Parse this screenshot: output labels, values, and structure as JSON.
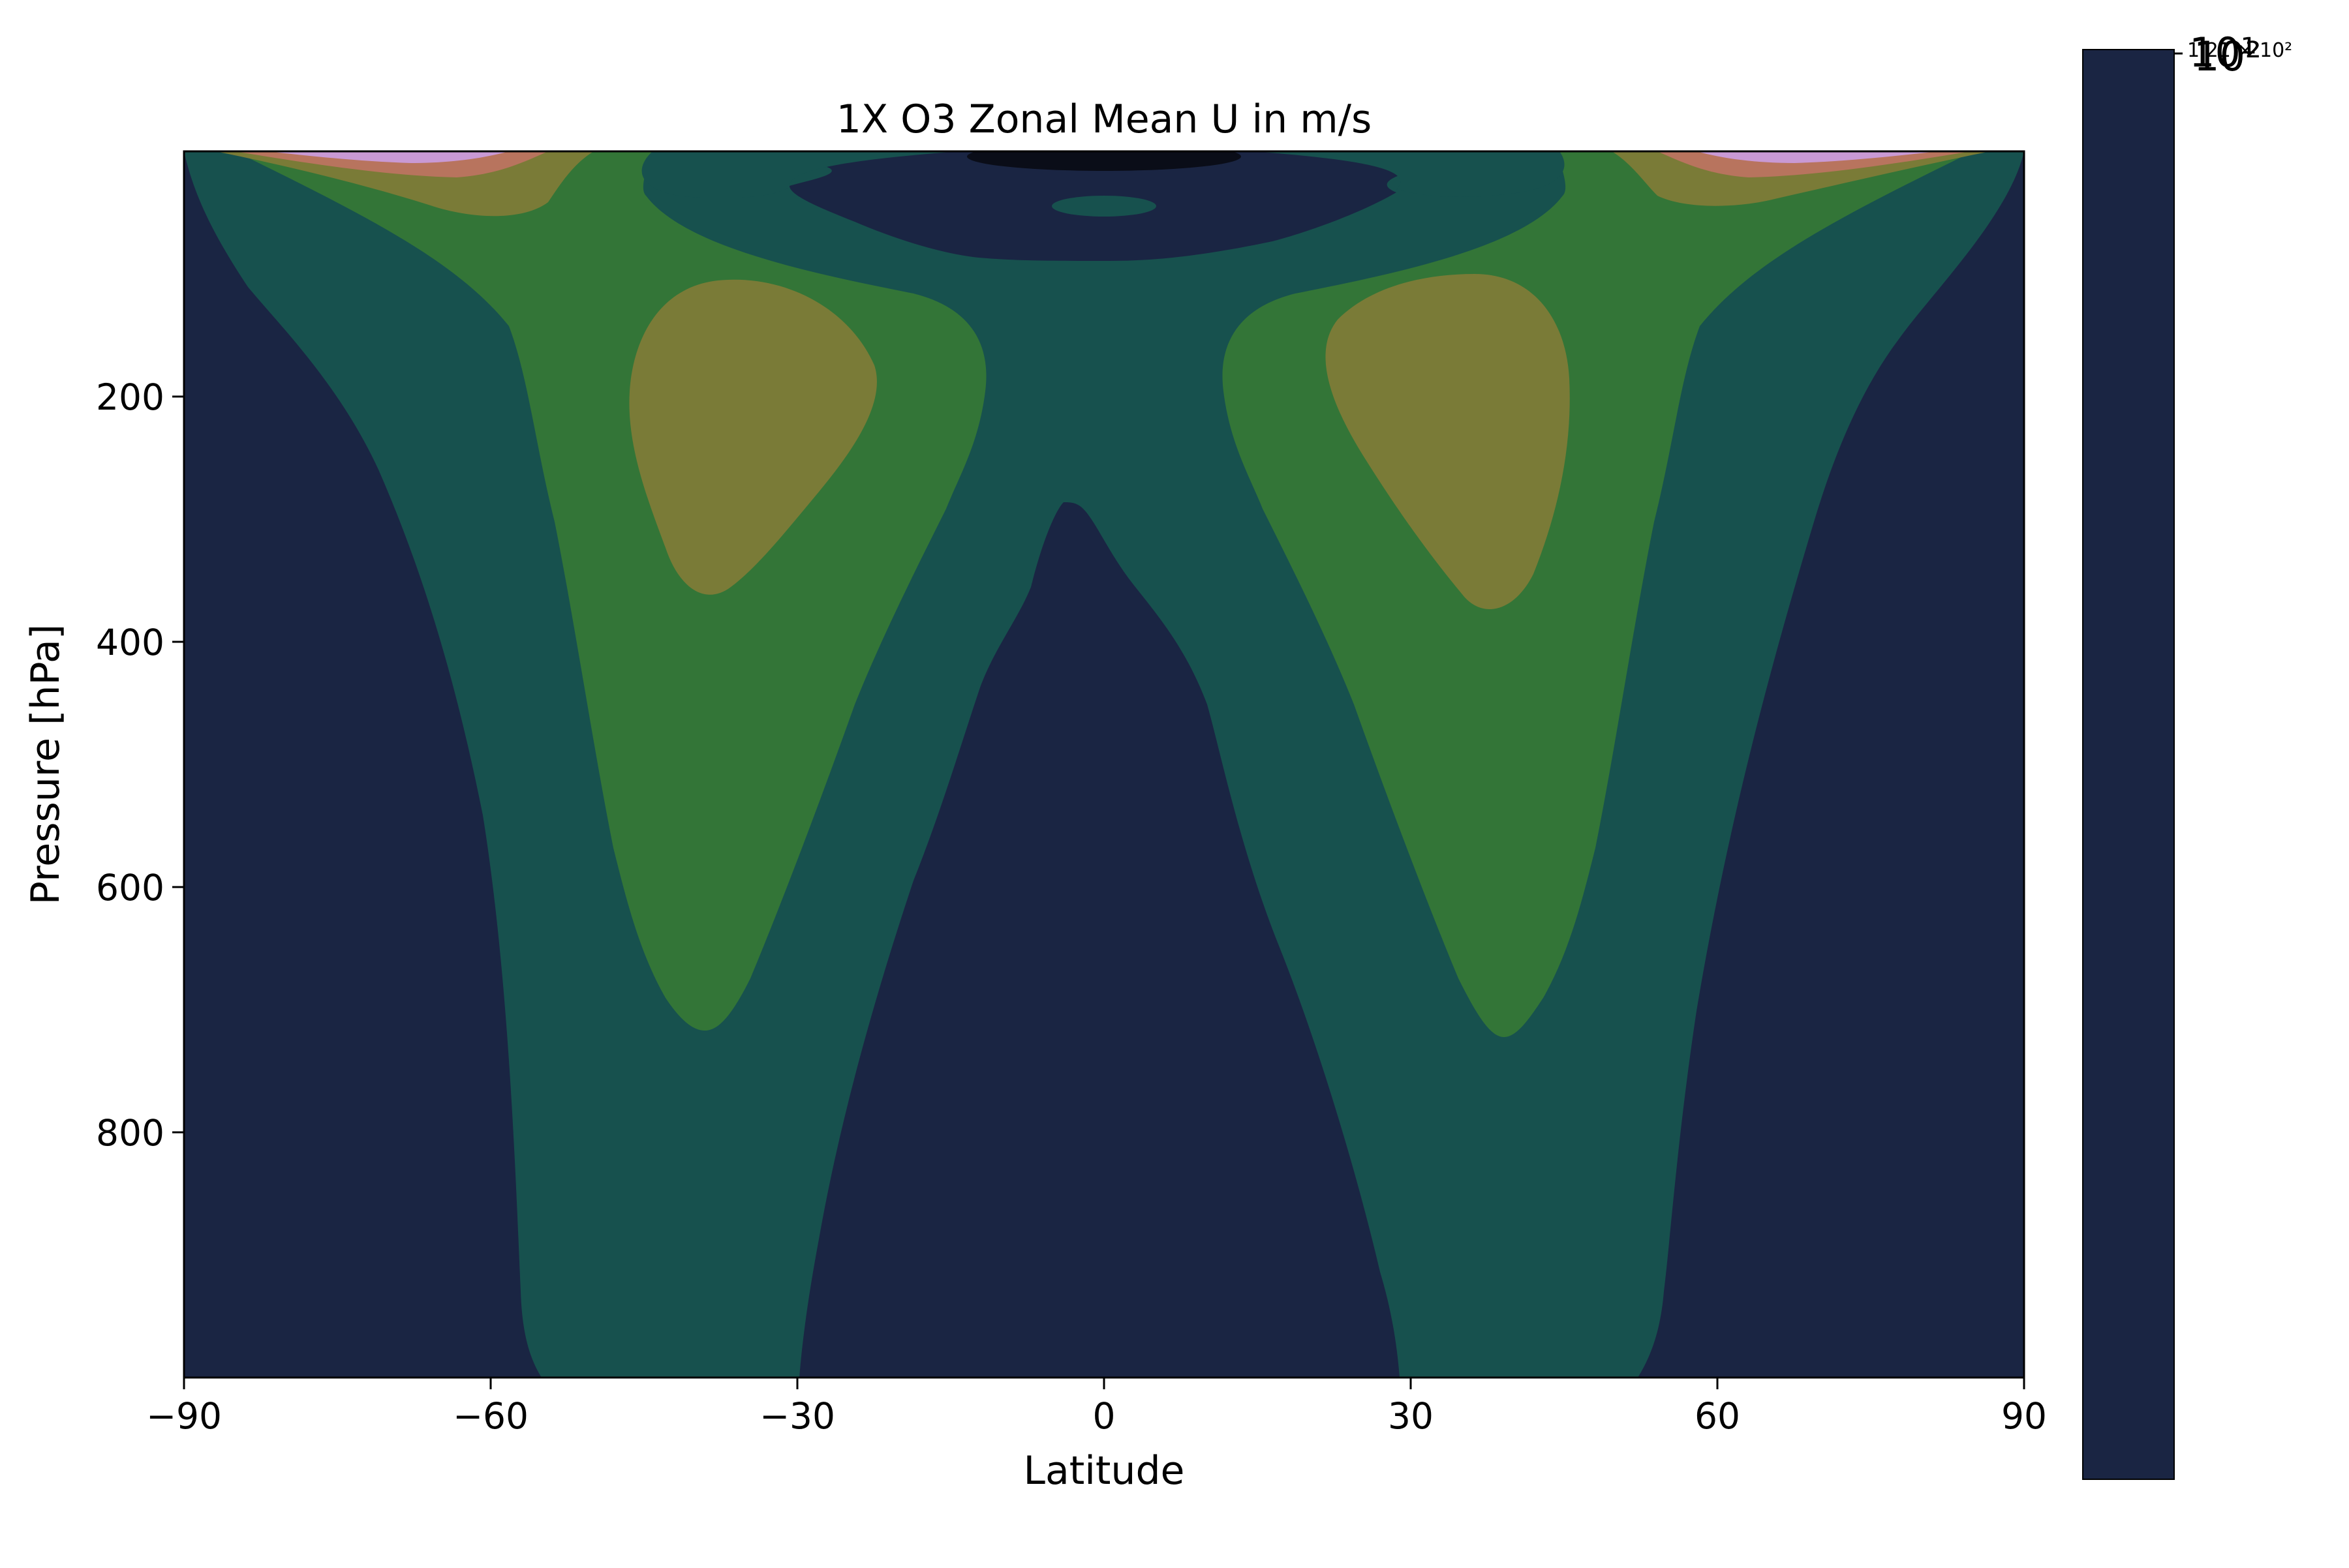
{
  "chart_data": {
    "type": "contourf",
    "title": "1X O3 Zonal Mean U in m/s",
    "xlabel": "Latitude",
    "ylabel": "Pressure [hPa]",
    "xlim": [
      -90,
      90
    ],
    "ylim": [
      1000,
      0
    ],
    "x_ticks": [
      -90,
      -60,
      -30,
      0,
      30,
      60,
      90
    ],
    "x_tick_labels": [
      "−90",
      "−60",
      "−30",
      "0",
      "30",
      "60",
      "90"
    ],
    "y_ticks": [
      200,
      400,
      600,
      800
    ],
    "y_tick_labels": [
      "200",
      "400",
      "600",
      "800"
    ],
    "colorbar": {
      "scale": "log",
      "tick_labels": [
        "10¹",
        "10²",
        "1.21 × 10²"
      ],
      "color": "#1a2543"
    },
    "regions": [
      {
        "name": "background",
        "color": "#1a2543"
      },
      {
        "name": "band-1",
        "color": "#17514e"
      },
      {
        "name": "band-2",
        "color": "#337537"
      },
      {
        "name": "band-3",
        "color": "#7a7b37"
      },
      {
        "name": "band-4",
        "color": "#b8745e"
      },
      {
        "name": "band-5",
        "color": "#c999d4"
      },
      {
        "name": "core-min",
        "color": "#0a0d18"
      }
    ]
  }
}
